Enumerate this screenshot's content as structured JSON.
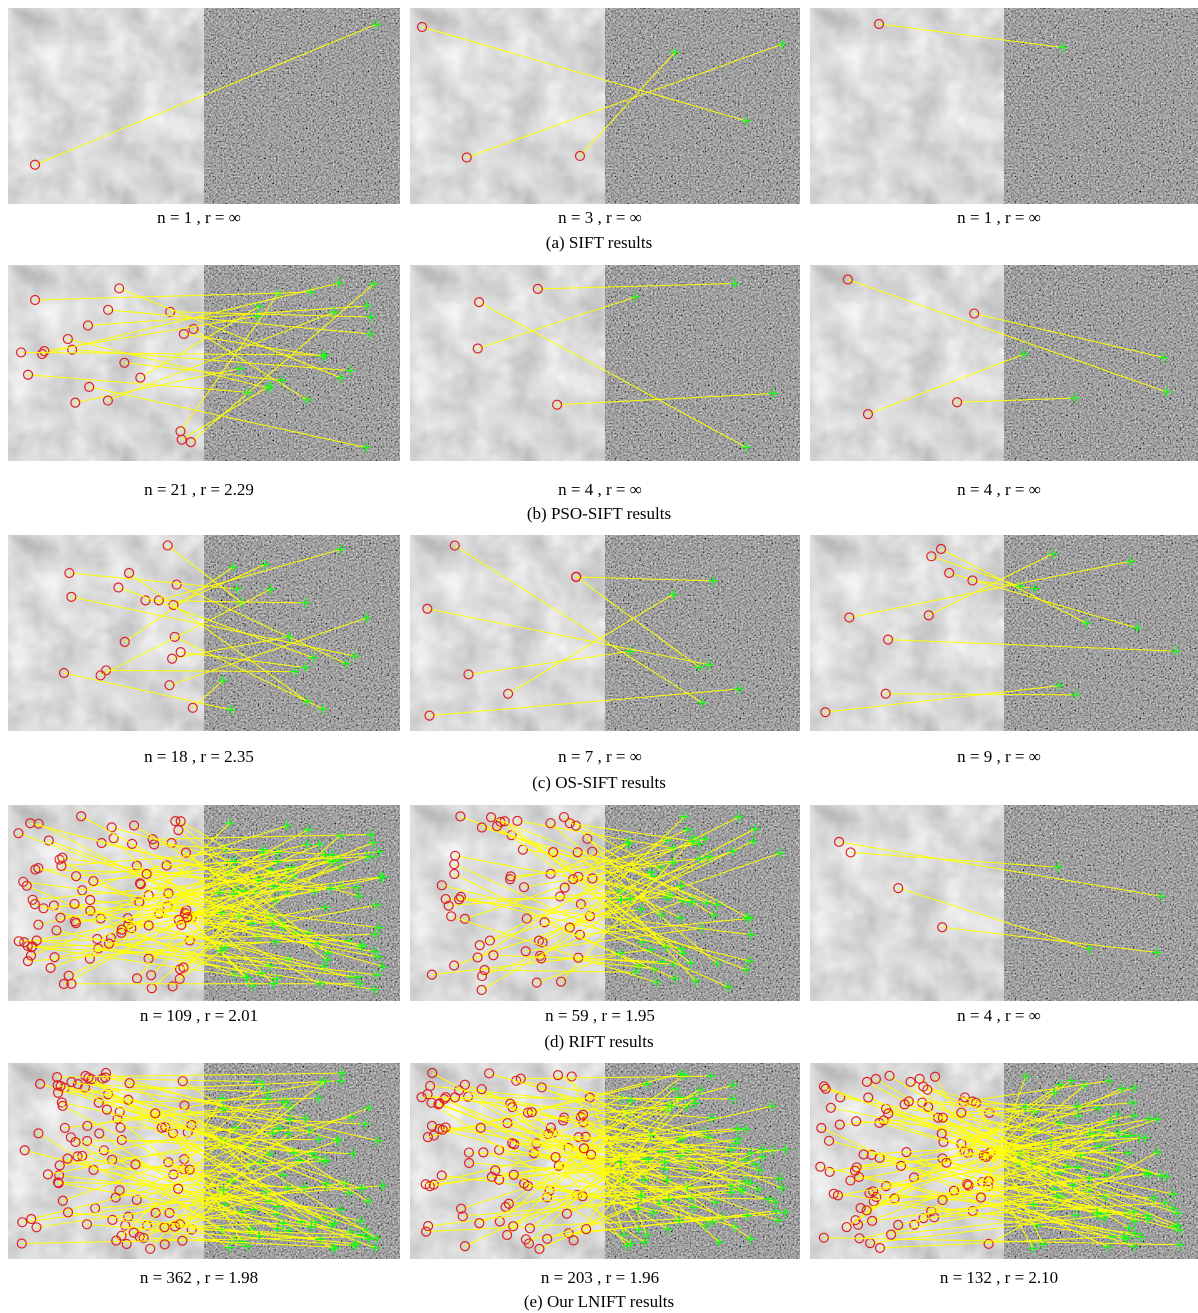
{
  "figure": {
    "rows": [
      {
        "caption": "(a) SIFT results",
        "panels": [
          "n = 1 , r = ∞",
          "n = 3 , r = ∞",
          "n = 1 , r = ∞"
        ]
      },
      {
        "caption": "(b) PSO-SIFT results",
        "panels": [
          "n = 21 , r = 2.29",
          "n = 4 , r = ∞",
          "n = 4 , r = ∞"
        ]
      },
      {
        "caption": "(c) OS-SIFT results",
        "panels": [
          "n = 18 , r = 2.35",
          "n = 7 , r = ∞",
          "n = 9 , r = ∞"
        ]
      },
      {
        "caption": "(d) RIFT results",
        "panels": [
          "n = 109 , r = 2.01",
          "n = 59 , r = 1.95",
          "n = 4 , r = ∞"
        ]
      },
      {
        "caption": "(e) Our LNIFT results",
        "panels": [
          "n = 362 , r = 1.98",
          "n = 203 , r = 1.96",
          "n = 132 , r = 2.10"
        ]
      }
    ]
  }
}
